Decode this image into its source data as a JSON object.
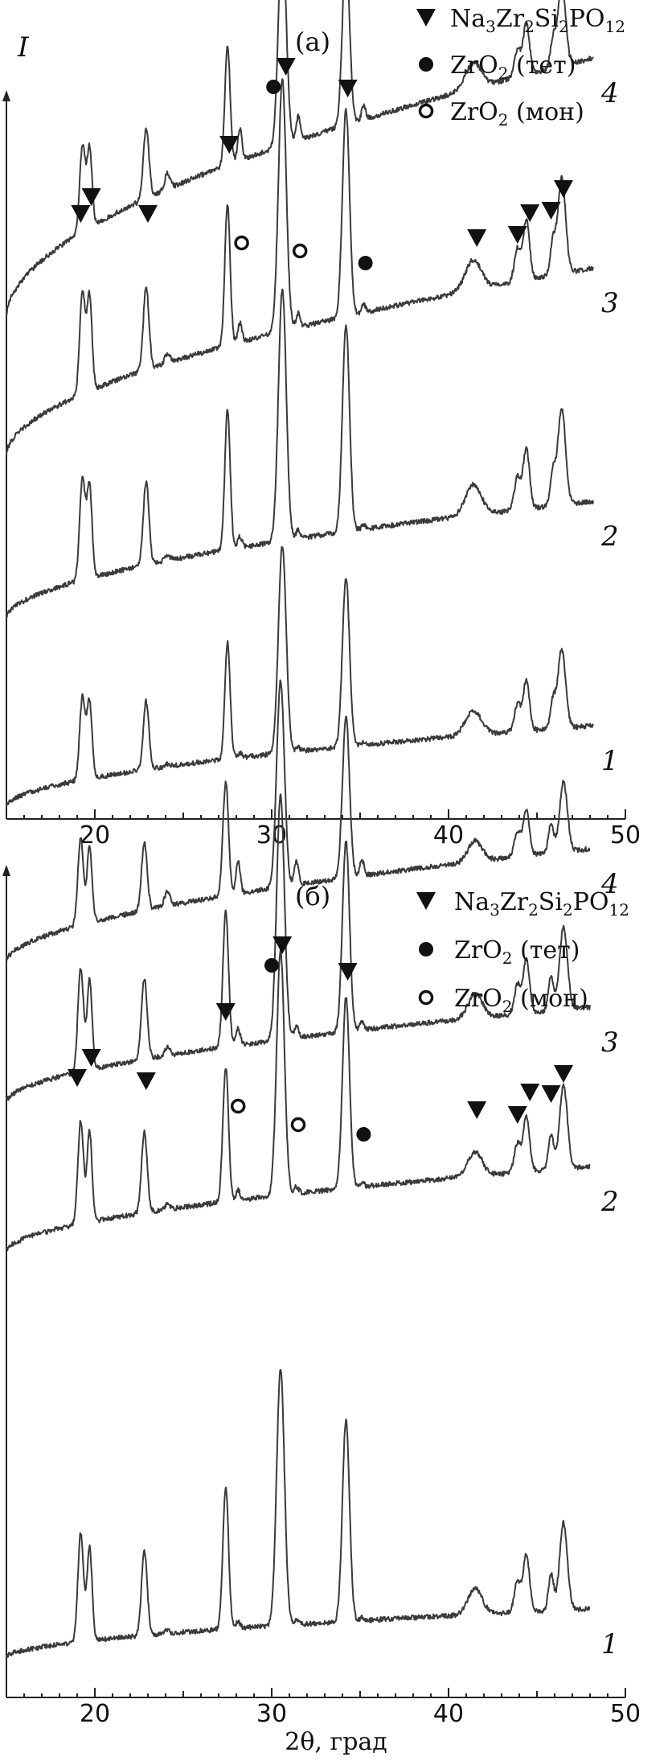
{
  "chart_data": [
    {
      "type": "line",
      "panel_label": "(а)",
      "ylabel": "I",
      "xlim": [
        15,
        50
      ],
      "xticks": [
        20,
        30,
        40,
        50
      ],
      "x_range_measured": [
        15,
        48.2
      ],
      "series_names": [
        "4",
        "3",
        "2",
        "1"
      ],
      "legend": [
        {
          "marker": "triangle",
          "label": "Na3Zr2Si2PO12",
          "parts": [
            [
              "Na",
              ""
            ],
            [
              "3",
              "sub"
            ],
            [
              "Zr",
              ""
            ],
            [
              "2",
              "sub"
            ],
            [
              "Si",
              ""
            ],
            [
              "2",
              "sub"
            ],
            [
              "PO",
              ""
            ],
            [
              "12",
              "sub"
            ]
          ]
        },
        {
          "marker": "filled-circle",
          "label": "ZrO2 (тет)",
          "parts": [
            [
              "ZrO",
              ""
            ],
            [
              "2",
              "sub"
            ],
            [
              " (тет)",
              ""
            ]
          ]
        },
        {
          "marker": "open-circle",
          "label": "ZrO2 (мон)",
          "parts": [
            [
              "ZrO",
              ""
            ],
            [
              "2",
              "sub"
            ],
            [
              " (мон)",
              ""
            ]
          ]
        }
      ],
      "main_peaks": [
        {
          "x": 19.3,
          "h": 0.4,
          "w": 0.16
        },
        {
          "x": 19.7,
          "h": 0.37,
          "w": 0.14
        },
        {
          "x": 22.9,
          "h": 0.33,
          "w": 0.16
        },
        {
          "x": 27.5,
          "h": 0.56,
          "w": 0.15
        },
        {
          "x": 30.6,
          "h": 1.0,
          "w": 0.22
        },
        {
          "x": 34.2,
          "h": 0.82,
          "w": 0.2
        },
        {
          "x": 41.4,
          "h": 0.12,
          "w": 0.45
        },
        {
          "x": 43.9,
          "h": 0.13,
          "w": 0.18
        },
        {
          "x": 44.4,
          "h": 0.24,
          "w": 0.18
        },
        {
          "x": 45.9,
          "h": 0.13,
          "w": 0.15
        },
        {
          "x": 46.4,
          "h": 0.38,
          "w": 0.22
        }
      ],
      "impurity_peaks": [
        {
          "x": 24.1,
          "h": 0.06,
          "w": 0.15
        },
        {
          "x": 28.2,
          "h": 0.12,
          "w": 0.12
        },
        {
          "x": 31.5,
          "h": 0.09,
          "w": 0.12
        },
        {
          "x": 35.2,
          "h": 0.05,
          "w": 0.12
        }
      ],
      "impurity_scale": [
        1.0,
        0.6,
        0.35,
        0.15
      ],
      "main_height_scale": [
        0.8,
        0.95,
        0.95,
        0.78
      ],
      "markers": [
        {
          "type": "triangle",
          "x": 19.2,
          "dy": 0
        },
        {
          "type": "triangle",
          "x": 19.8,
          "dy": -20
        },
        {
          "type": "triangle",
          "x": 23.0,
          "dy": 0
        },
        {
          "type": "triangle",
          "x": 27.6,
          "dy": 0
        },
        {
          "type": "filled-circle",
          "x": 30.1,
          "dy": 0
        },
        {
          "type": "triangle",
          "x": 30.8,
          "dy": -20
        },
        {
          "type": "triangle",
          "x": 34.3,
          "dy": 0
        },
        {
          "type": "open-circle",
          "x": 28.3,
          "dy": 0
        },
        {
          "type": "open-circle",
          "x": 31.6,
          "dy": 0
        },
        {
          "type": "filled-circle",
          "x": 35.3,
          "dy": 0
        },
        {
          "type": "triangle",
          "x": 41.6,
          "dy": 0
        },
        {
          "type": "triangle",
          "x": 43.9,
          "dy": 0
        },
        {
          "type": "triangle",
          "x": 44.6,
          "dy": -20
        },
        {
          "type": "triangle",
          "x": 45.8,
          "dy": 0
        },
        {
          "type": "triangle",
          "x": 46.5,
          "dy": -20
        }
      ]
    },
    {
      "type": "line",
      "panel_label": "(б)",
      "xlabel": "2θ, град",
      "xlim": [
        15,
        50
      ],
      "xticks": [
        20,
        30,
        40,
        50
      ],
      "x_range_measured": [
        15,
        48.0
      ],
      "series_names": [
        "4",
        "3",
        "2",
        "1"
      ],
      "legend": [
        {
          "marker": "triangle",
          "label": "Na3Zr2Si2PO12",
          "parts": [
            [
              "Na",
              ""
            ],
            [
              "3",
              "sub"
            ],
            [
              "Zr",
              ""
            ],
            [
              "2",
              "sub"
            ],
            [
              "Si",
              ""
            ],
            [
              "2",
              "sub"
            ],
            [
              "PO",
              ""
            ],
            [
              "12",
              "sub"
            ]
          ]
        },
        {
          "marker": "filled-circle",
          "label": "ZrO2 (тет)",
          "parts": [
            [
              "ZrO",
              ""
            ],
            [
              "2",
              "sub"
            ],
            [
              " (тет)",
              ""
            ]
          ]
        },
        {
          "marker": "open-circle",
          "label": "ZrO2 (мон)",
          "parts": [
            [
              "ZrO",
              ""
            ],
            [
              "2",
              "sub"
            ],
            [
              " (мон)",
              ""
            ]
          ]
        }
      ],
      "main_peaks": [
        {
          "x": 19.2,
          "h": 0.42,
          "w": 0.16
        },
        {
          "x": 19.7,
          "h": 0.37,
          "w": 0.14
        },
        {
          "x": 22.8,
          "h": 0.33,
          "w": 0.16
        },
        {
          "x": 27.4,
          "h": 0.55,
          "w": 0.16
        },
        {
          "x": 30.5,
          "h": 1.0,
          "w": 0.22
        },
        {
          "x": 34.2,
          "h": 0.78,
          "w": 0.2
        },
        {
          "x": 41.5,
          "h": 0.1,
          "w": 0.4
        },
        {
          "x": 43.9,
          "h": 0.12,
          "w": 0.18
        },
        {
          "x": 44.4,
          "h": 0.22,
          "w": 0.18
        },
        {
          "x": 45.8,
          "h": 0.14,
          "w": 0.15
        },
        {
          "x": 46.5,
          "h": 0.34,
          "w": 0.22
        }
      ],
      "impurity_peaks": [
        {
          "x": 24.1,
          "h": 0.06,
          "w": 0.15
        },
        {
          "x": 28.1,
          "h": 0.13,
          "w": 0.12
        },
        {
          "x": 31.4,
          "h": 0.09,
          "w": 0.12
        },
        {
          "x": 35.1,
          "h": 0.06,
          "w": 0.12
        }
      ],
      "impurity_scale": [
        1.0,
        0.5,
        0.3,
        0.2
      ],
      "main_height_scale": [
        0.8,
        0.95,
        0.95,
        1.0
      ],
      "markers": [
        {
          "type": "triangle",
          "x": 19.0,
          "dy": 0
        },
        {
          "type": "triangle",
          "x": 19.8,
          "dy": -20
        },
        {
          "type": "triangle",
          "x": 22.9,
          "dy": 0
        },
        {
          "type": "triangle",
          "x": 27.4,
          "dy": 0
        },
        {
          "type": "filled-circle",
          "x": 30.0,
          "dy": 0
        },
        {
          "type": "triangle",
          "x": 30.6,
          "dy": -20
        },
        {
          "type": "triangle",
          "x": 34.3,
          "dy": 0
        },
        {
          "type": "open-circle",
          "x": 28.1,
          "dy": 0
        },
        {
          "type": "open-circle",
          "x": 31.5,
          "dy": 0
        },
        {
          "type": "filled-circle",
          "x": 35.2,
          "dy": 0
        },
        {
          "type": "triangle",
          "x": 41.6,
          "dy": 0
        },
        {
          "type": "triangle",
          "x": 43.9,
          "dy": 0
        },
        {
          "type": "triangle",
          "x": 44.6,
          "dy": -20
        },
        {
          "type": "triangle",
          "x": 45.8,
          "dy": 0
        },
        {
          "type": "triangle",
          "x": 46.5,
          "dy": -20
        }
      ]
    }
  ]
}
